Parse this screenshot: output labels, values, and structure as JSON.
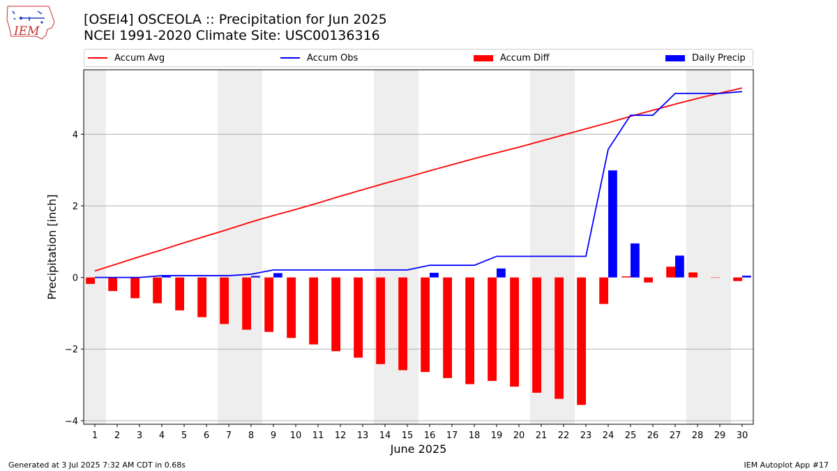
{
  "header": {
    "title_line1": "[OSEI4] OSCEOLA :: Precipitation for Jun 2025",
    "title_line2": "NCEI 1991-2020 Climate Site: USC00136316"
  },
  "logo": {
    "text": "IEM"
  },
  "footer": {
    "generated": "Generated at 3 Jul 2025 7:32 AM CDT in 0.68s",
    "app": "IEM Autoplot App #17"
  },
  "colors": {
    "accum_avg": "#ff0000",
    "accum_obs": "#0000ff",
    "accum_diff": "#ff0000",
    "daily_precip": "#0000ff",
    "weekend_shade": "#eeeeee",
    "grid": "#b0b0b0"
  },
  "chart_data": {
    "type": "bar",
    "xlabel": "June 2025",
    "ylabel": "Precipitation [inch]",
    "ylim": [
      -4.1,
      5.8
    ],
    "yticks": [
      -4,
      -2,
      0,
      2,
      4
    ],
    "grid": "horizontal",
    "legend_position": "top",
    "days": [
      1,
      2,
      3,
      4,
      5,
      6,
      7,
      8,
      9,
      10,
      11,
      12,
      13,
      14,
      15,
      16,
      17,
      18,
      19,
      20,
      21,
      22,
      23,
      24,
      25,
      26,
      27,
      28,
      29,
      30
    ],
    "weekend_days": [
      1,
      7,
      8,
      14,
      15,
      21,
      22,
      28,
      29
    ],
    "series": [
      {
        "name": "Accum Avg",
        "kind": "line",
        "values": [
          0.18,
          0.38,
          0.58,
          0.77,
          0.97,
          1.16,
          1.35,
          1.55,
          1.73,
          1.9,
          2.08,
          2.27,
          2.45,
          2.63,
          2.8,
          2.98,
          3.15,
          3.32,
          3.48,
          3.64,
          3.81,
          3.98,
          4.15,
          4.32,
          4.5,
          4.67,
          4.84,
          5.0,
          5.15,
          5.29
        ]
      },
      {
        "name": "Accum Obs",
        "kind": "line",
        "values": [
          0.0,
          0.0,
          0.0,
          0.05,
          0.05,
          0.05,
          0.05,
          0.09,
          0.21,
          0.21,
          0.21,
          0.21,
          0.21,
          0.21,
          0.21,
          0.34,
          0.34,
          0.34,
          0.59,
          0.59,
          0.59,
          0.59,
          0.59,
          3.58,
          4.53,
          4.53,
          5.14,
          5.14,
          5.14,
          5.19
        ]
      },
      {
        "name": "Accum Diff",
        "kind": "bar",
        "values": [
          -0.18,
          -0.38,
          -0.58,
          -0.72,
          -0.92,
          -1.11,
          -1.3,
          -1.46,
          -1.52,
          -1.69,
          -1.87,
          -2.06,
          -2.24,
          -2.42,
          -2.59,
          -2.64,
          -2.81,
          -2.98,
          -2.89,
          -3.05,
          -3.22,
          -3.39,
          -3.56,
          -0.74,
          0.03,
          -0.14,
          0.3,
          0.14,
          -0.01,
          -0.1
        ]
      },
      {
        "name": "Daily Precip",
        "kind": "bar",
        "values": [
          0,
          0,
          0,
          0.05,
          0,
          0,
          0,
          0.04,
          0.12,
          0,
          0,
          0,
          0,
          0,
          0,
          0.13,
          0,
          0,
          0.25,
          0,
          0,
          0,
          0,
          2.99,
          0.95,
          0,
          0.61,
          0,
          0,
          0.05
        ]
      }
    ]
  }
}
